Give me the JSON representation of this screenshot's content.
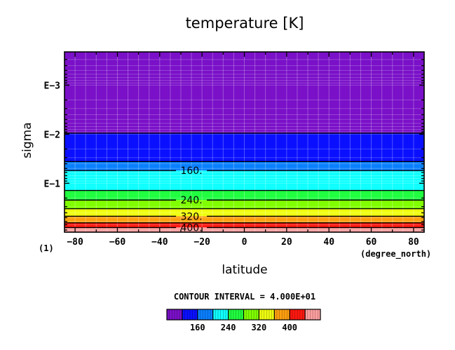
{
  "chart_data": {
    "type": "heatmap",
    "title": "temperature [K]",
    "xlabel": "latitude",
    "ylabel": "sigma",
    "x_unit": "(degree_north)",
    "corner_label": "(1)",
    "xlim": [
      -85,
      85
    ],
    "x_ticks": [
      -80,
      -60,
      -40,
      -20,
      0,
      20,
      40,
      60,
      80
    ],
    "x_tick_labels": [
      "−80",
      "−60",
      "−40",
      "−20",
      "0",
      "20",
      "40",
      "60",
      "80"
    ],
    "y_scale": "log",
    "ylim": [
      0.992,
      0.00021
    ],
    "y_ticks": [
      0.001,
      0.01,
      0.1
    ],
    "y_tick_labels": [
      "E−3",
      "E−2",
      "E−1"
    ],
    "contour_interval_text": "CONTOUR INTERVAL = 4.000E+01",
    "contour_levels": [
      80,
      120,
      160,
      200,
      240,
      280,
      320,
      360,
      400,
      440
    ],
    "contour_level_labels": [
      "160.",
      "240.",
      "320.",
      "400."
    ],
    "contour_label_values": [
      160,
      240,
      320,
      400
    ],
    "band_colors": [
      "#7a10c8",
      "#0a10ff",
      "#0a80ff",
      "#10ffff",
      "#20ff40",
      "#80ff00",
      "#f0ff10",
      "#ffa010",
      "#ff1810",
      "#ffa0a0"
    ],
    "level_sigma": [
      0.0095,
      0.036,
      0.055,
      0.14,
      0.22,
      0.33,
      0.47,
      0.64,
      0.8
    ],
    "colorbar_ticks": [
      "160",
      "240",
      "320",
      "400"
    ],
    "grid": true
  }
}
